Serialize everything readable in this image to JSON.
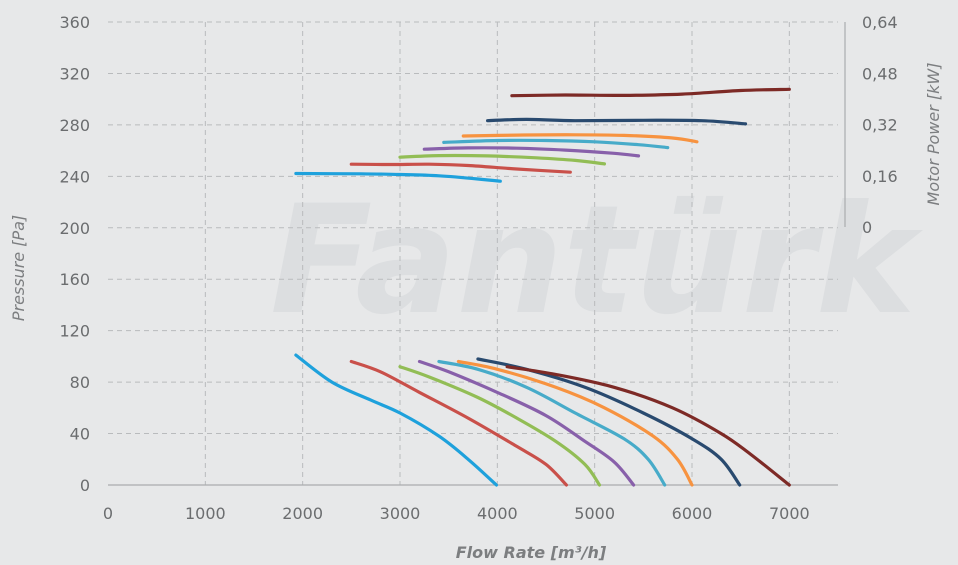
{
  "watermark": "Fantürk",
  "chart_data": {
    "type": "line",
    "title": "",
    "xlabel": "Flow Rate [m³/h]",
    "ylabel": "Pressure [Pa]",
    "y2label": "Motor Power [kW]",
    "xlim": [
      0,
      7500
    ],
    "ylim": [
      0,
      360
    ],
    "y2lim": [
      0,
      0.64
    ],
    "grid": true,
    "x_ticks": [
      "0",
      "1000",
      "2000",
      "3000",
      "4000",
      "5000",
      "6000",
      "7000"
    ],
    "y_ticks": [
      "0",
      "40",
      "80",
      "120",
      "160",
      "200",
      "240",
      "280",
      "320",
      "360"
    ],
    "y2_ticks": [
      "0",
      "0,16",
      "0,32",
      "0,48",
      "0,64"
    ],
    "pressure_curves": [
      {
        "color": "#1ea1dc",
        "points": [
          [
            1930,
            101
          ],
          [
            2300,
            80
          ],
          [
            2700,
            66
          ],
          [
            3000,
            56
          ],
          [
            3400,
            38
          ],
          [
            3700,
            20
          ],
          [
            3990,
            0
          ]
        ]
      },
      {
        "color": "#c9504a",
        "points": [
          [
            2500,
            96
          ],
          [
            2800,
            88
          ],
          [
            3200,
            72
          ],
          [
            3700,
            52
          ],
          [
            4200,
            30
          ],
          [
            4500,
            16
          ],
          [
            4710,
            0
          ]
        ]
      },
      {
        "color": "#92bd55",
        "points": [
          [
            3000,
            92
          ],
          [
            3300,
            84
          ],
          [
            3800,
            68
          ],
          [
            4200,
            52
          ],
          [
            4600,
            34
          ],
          [
            4900,
            16
          ],
          [
            5050,
            0
          ]
        ]
      },
      {
        "color": "#8860aa",
        "points": [
          [
            3200,
            96
          ],
          [
            3500,
            88
          ],
          [
            4000,
            72
          ],
          [
            4500,
            54
          ],
          [
            4900,
            34
          ],
          [
            5200,
            18
          ],
          [
            5400,
            0
          ]
        ]
      },
      {
        "color": "#47abc9",
        "points": [
          [
            3400,
            96
          ],
          [
            3800,
            90
          ],
          [
            4300,
            76
          ],
          [
            4800,
            56
          ],
          [
            5300,
            36
          ],
          [
            5550,
            20
          ],
          [
            5720,
            0
          ]
        ]
      },
      {
        "color": "#f79340",
        "points": [
          [
            3600,
            96
          ],
          [
            4000,
            90
          ],
          [
            4600,
            76
          ],
          [
            5100,
            60
          ],
          [
            5600,
            38
          ],
          [
            5850,
            20
          ],
          [
            6000,
            0
          ]
        ]
      },
      {
        "color": "#294a6f",
        "points": [
          [
            3800,
            98
          ],
          [
            4300,
            90
          ],
          [
            4900,
            76
          ],
          [
            5500,
            56
          ],
          [
            6000,
            36
          ],
          [
            6300,
            20
          ],
          [
            6490,
            0
          ]
        ]
      },
      {
        "color": "#7d2a26",
        "points": [
          [
            4100,
            92
          ],
          [
            4600,
            86
          ],
          [
            5200,
            76
          ],
          [
            5800,
            60
          ],
          [
            6300,
            40
          ],
          [
            6600,
            24
          ],
          [
            7000,
            0
          ]
        ]
      }
    ],
    "power_curves": [
      {
        "color": "#1ea1dc",
        "points": [
          [
            1930,
            0.167
          ],
          [
            2600,
            0.166
          ],
          [
            3000,
            0.164
          ],
          [
            3400,
            0.16
          ],
          [
            3800,
            0.15
          ],
          [
            4030,
            0.143
          ]
        ]
      },
      {
        "color": "#c9504a",
        "points": [
          [
            2500,
            0.196
          ],
          [
            2900,
            0.195
          ],
          [
            3300,
            0.196
          ],
          [
            3700,
            0.192
          ],
          [
            4200,
            0.181
          ],
          [
            4750,
            0.171
          ]
        ]
      },
      {
        "color": "#92bd55",
        "points": [
          [
            3000,
            0.218
          ],
          [
            3400,
            0.223
          ],
          [
            3900,
            0.222
          ],
          [
            4400,
            0.216
          ],
          [
            4800,
            0.208
          ],
          [
            5100,
            0.197
          ]
        ]
      },
      {
        "color": "#8860aa",
        "points": [
          [
            3250,
            0.243
          ],
          [
            3700,
            0.247
          ],
          [
            4200,
            0.246
          ],
          [
            4700,
            0.24
          ],
          [
            5200,
            0.23
          ],
          [
            5450,
            0.222
          ]
        ]
      },
      {
        "color": "#47abc9",
        "points": [
          [
            3450,
            0.264
          ],
          [
            4000,
            0.27
          ],
          [
            4500,
            0.27
          ],
          [
            5000,
            0.266
          ],
          [
            5450,
            0.257
          ],
          [
            5750,
            0.248
          ]
        ]
      },
      {
        "color": "#f79340",
        "points": [
          [
            3650,
            0.284
          ],
          [
            4200,
            0.287
          ],
          [
            4800,
            0.288
          ],
          [
            5300,
            0.286
          ],
          [
            5800,
            0.278
          ],
          [
            6050,
            0.266
          ]
        ]
      },
      {
        "color": "#294a6f",
        "points": [
          [
            3900,
            0.332
          ],
          [
            4300,
            0.336
          ],
          [
            4800,
            0.332
          ],
          [
            5500,
            0.333
          ],
          [
            6100,
            0.332
          ],
          [
            6550,
            0.322
          ]
        ]
      },
      {
        "color": "#7d2a26",
        "points": [
          [
            4150,
            0.41
          ],
          [
            4700,
            0.412
          ],
          [
            5300,
            0.411
          ],
          [
            5900,
            0.415
          ],
          [
            6500,
            0.426
          ],
          [
            7000,
            0.43
          ]
        ]
      }
    ]
  }
}
